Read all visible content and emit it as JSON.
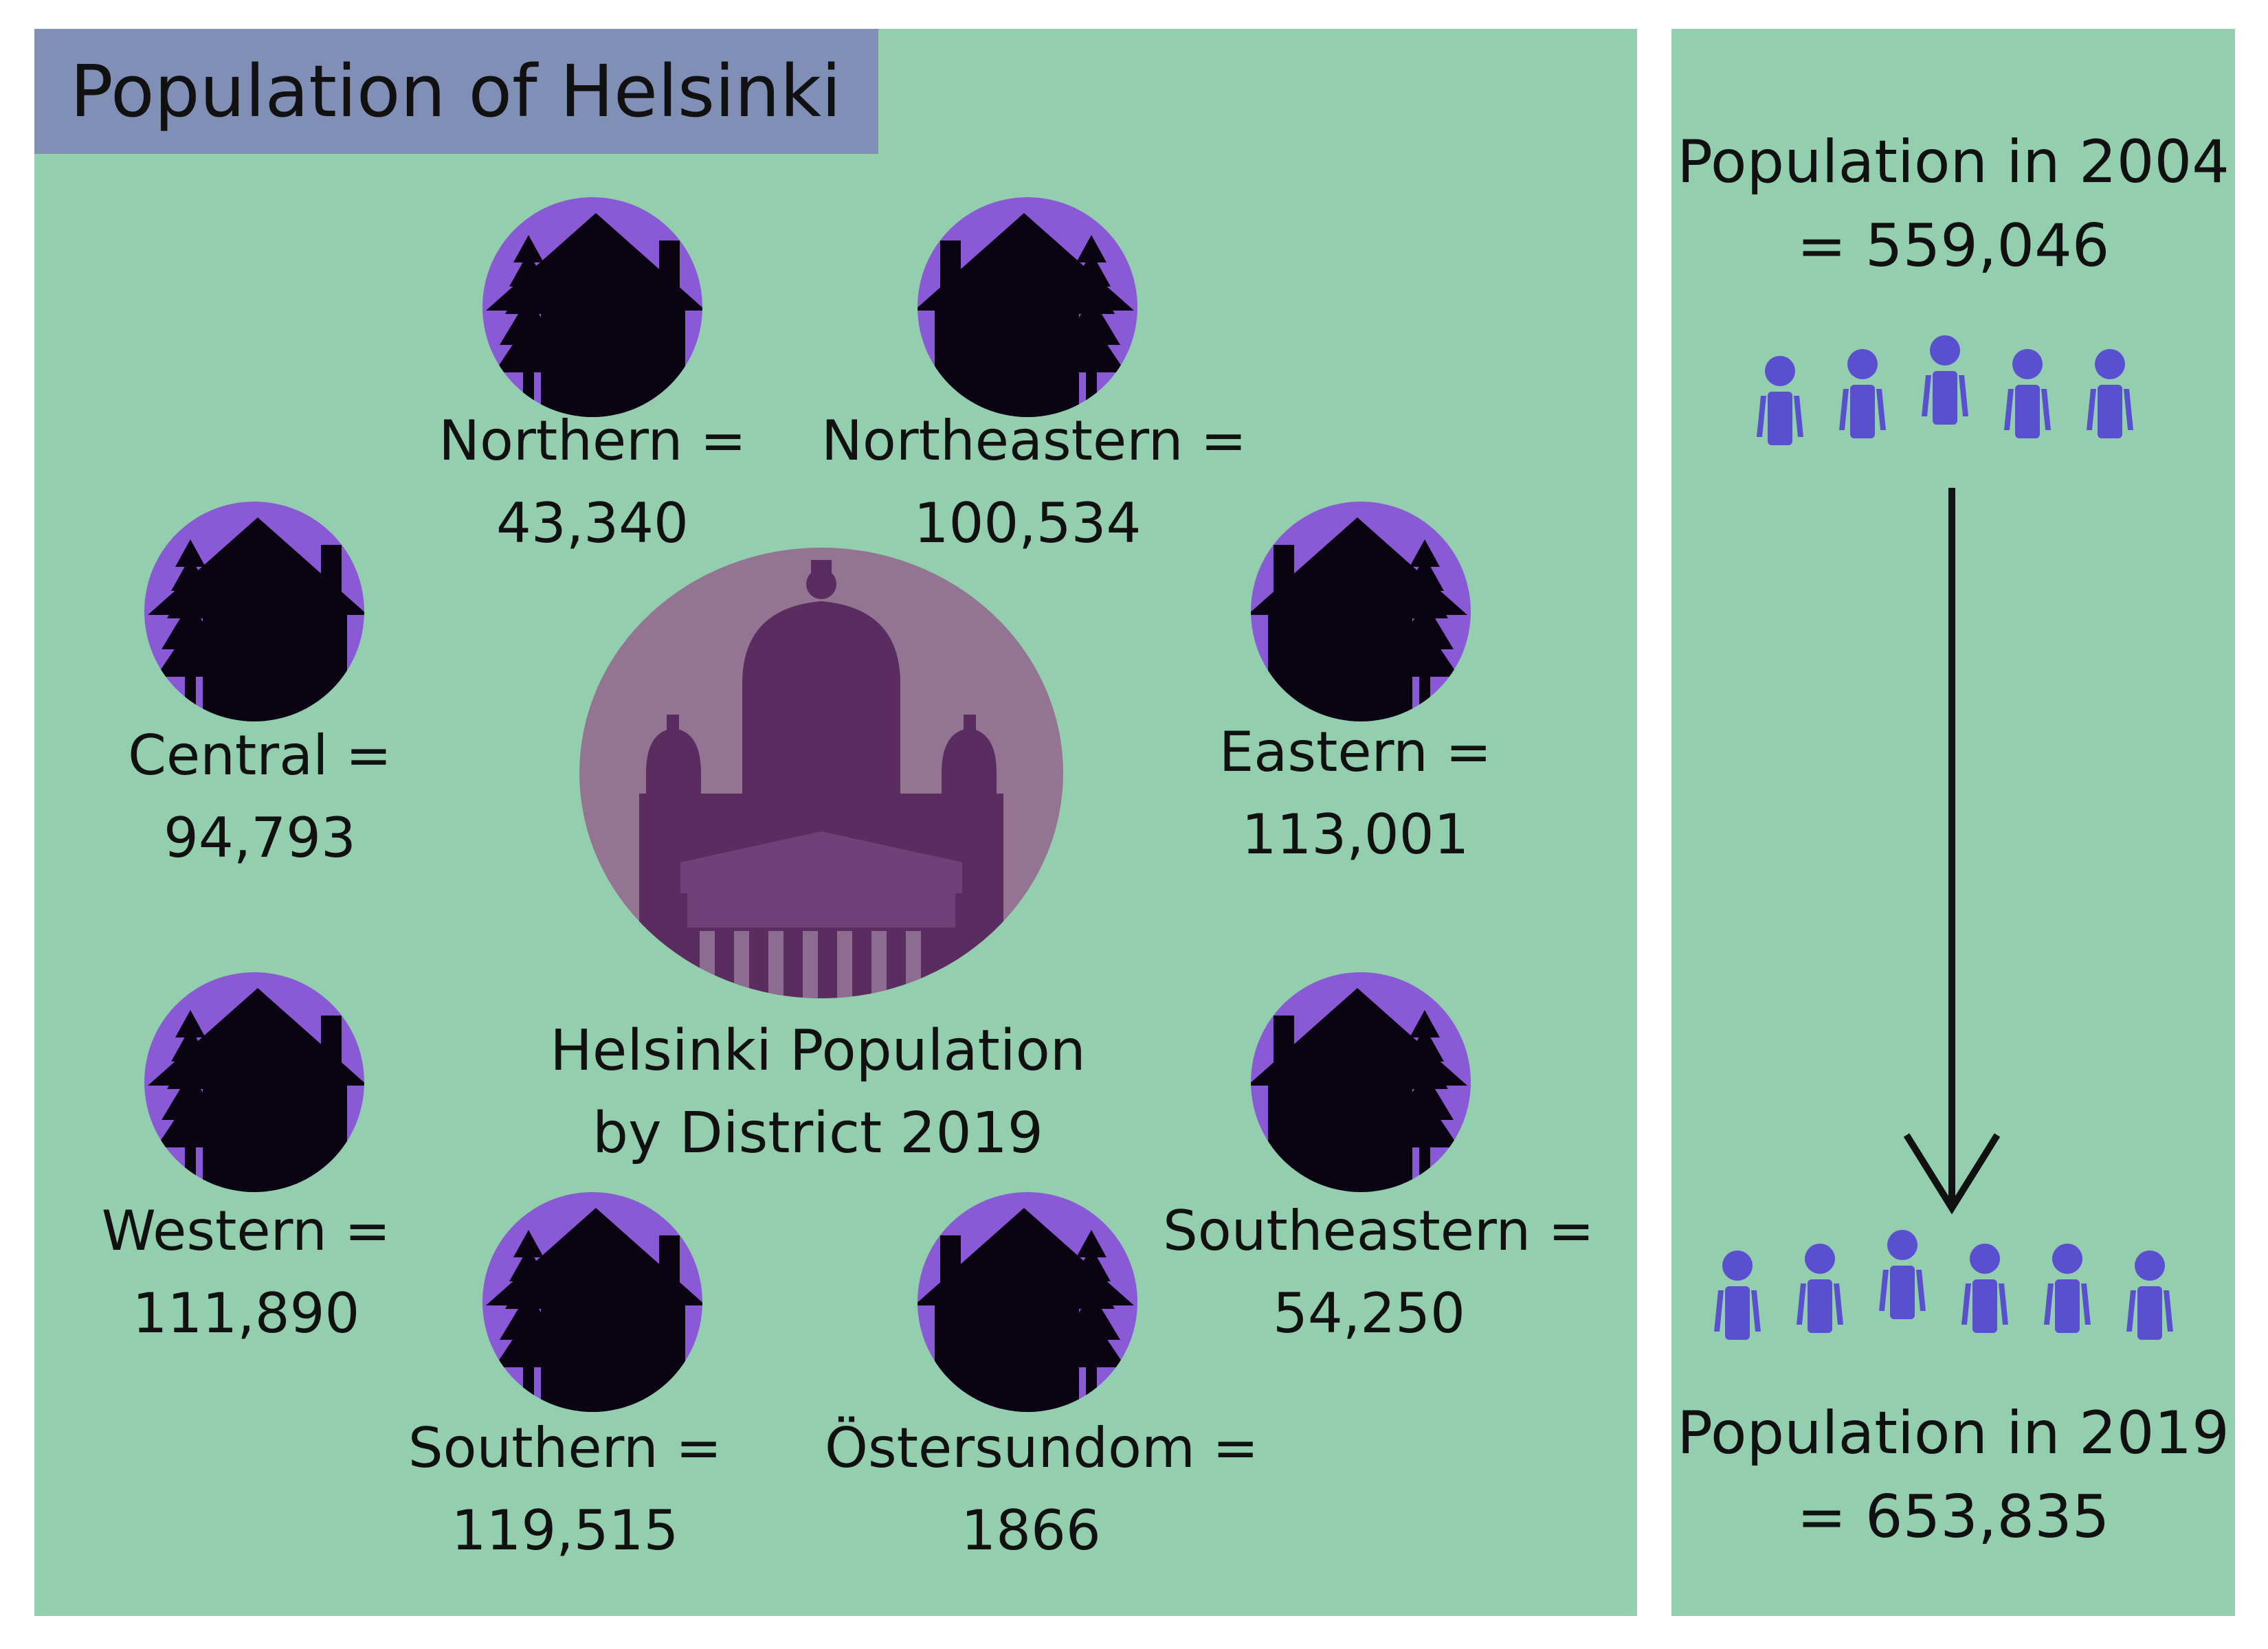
{
  "title": "Population of Helsinki",
  "center_label": {
    "line1": "Helsinki Population",
    "line2": "by District 2019"
  },
  "districts": [
    {
      "name": "Northern =",
      "value": "43,340"
    },
    {
      "name": "Northeastern =",
      "value": "100,534"
    },
    {
      "name": "Central =",
      "value": "94,793"
    },
    {
      "name": "Eastern =",
      "value": "113,001"
    },
    {
      "name": "Western =",
      "value": "111,890"
    },
    {
      "name": "Southeastern =",
      "value": "54,250"
    },
    {
      "name": "Southern =",
      "value": "119,515"
    },
    {
      "name": "Östersundom =",
      "value": "1866"
    }
  ],
  "population_2004": {
    "label": "Population in 2004",
    "value": "= 559,046",
    "figures": 5
  },
  "population_2019": {
    "label": "Population in 2019",
    "value": "= 653,835",
    "figures": 6
  },
  "colors": {
    "panel": "#93cfae",
    "title_box": "#7f8fb5",
    "icon_circle": "#8a5ad6",
    "icon_silhouette": "#0a0412",
    "cathedral_circle": "#937593",
    "cathedral_dark": "#5a2c5f",
    "people": "#5a4fcf"
  },
  "icons": {
    "district": "house-tree-icon",
    "center": "cathedral-icon",
    "people": "people-icon",
    "arrow": "arrow-down-icon"
  }
}
